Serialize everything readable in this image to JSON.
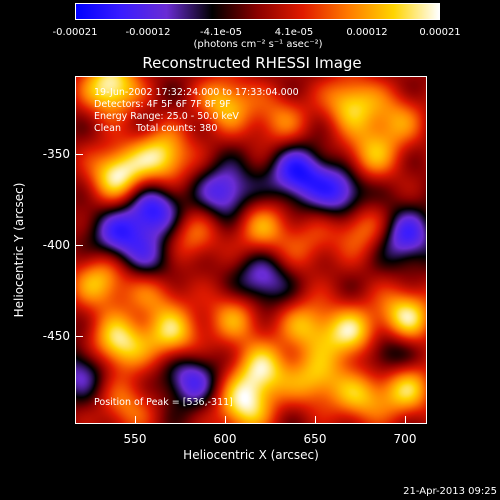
{
  "colorbar": {
    "ticks": [
      "-0.00021",
      "-0.00012",
      "-4.1e-05",
      "4.1e-05",
      "0.00012",
      "0.00021"
    ],
    "unit_label": "(photons cm⁻² s⁻¹ asec⁻²)",
    "colors": [
      "#0000ff",
      "#3a1cff",
      "#6a2cd4",
      "#000000",
      "#8a0000",
      "#e01a00",
      "#ff7a00",
      "#ffd400",
      "#ffffff"
    ]
  },
  "annotations": {
    "line1": "19-Jun-2002 17:32:24.000 to 17:33:04.000",
    "line2": "Detectors: 4F 5F 6F 7F 8F 9F",
    "line3": "Energy Range: 25.0 - 50.0 keV",
    "line4": "Clean     Total counts: 380",
    "peak": "Position of Peak = [536,-311]"
  },
  "timestamp": "21-Apr-2013 09:25",
  "chart_data": {
    "type": "heatmap",
    "title": "Reconstructed RHESSI Image",
    "xlabel": "Heliocentric X (arcsec)",
    "ylabel": "Heliocentric Y (arcsec)",
    "xlim": [
      516,
      712
    ],
    "ylim": [
      -500,
      -305
    ],
    "x_ticks": [
      "550",
      "600",
      "650",
      "700"
    ],
    "y_ticks": [
      "-350",
      "-400",
      "-450"
    ],
    "value_range": [
      -0.00021,
      0.00021
    ],
    "sources": [
      {
        "x": 536,
        "y": -311,
        "v": 0.00021
      },
      {
        "x": 540,
        "y": -360,
        "v": 0.0002
      },
      {
        "x": 565,
        "y": -350,
        "v": 0.00018
      },
      {
        "x": 600,
        "y": -320,
        "v": 0.00015
      },
      {
        "x": 630,
        "y": -330,
        "v": 0.0001
      },
      {
        "x": 670,
        "y": -320,
        "v": 0.00016
      },
      {
        "x": 695,
        "y": -330,
        "v": 0.00011
      },
      {
        "x": 680,
        "y": -350,
        "v": 0.00013
      },
      {
        "x": 580,
        "y": -395,
        "v": 0.0001
      },
      {
        "x": 620,
        "y": -390,
        "v": 0.00012
      },
      {
        "x": 645,
        "y": -400,
        "v": 7e-05
      },
      {
        "x": 675,
        "y": -390,
        "v": 0.00012
      },
      {
        "x": 530,
        "y": -420,
        "v": 0.00015
      },
      {
        "x": 560,
        "y": -425,
        "v": 0.00011
      },
      {
        "x": 540,
        "y": -455,
        "v": 0.00019
      },
      {
        "x": 570,
        "y": -450,
        "v": 0.00016
      },
      {
        "x": 605,
        "y": -440,
        "v": 0.00012
      },
      {
        "x": 645,
        "y": -445,
        "v": 0.00013
      },
      {
        "x": 670,
        "y": -450,
        "v": 0.00018
      },
      {
        "x": 700,
        "y": -440,
        "v": 0.00019
      },
      {
        "x": 620,
        "y": -470,
        "v": 0.00017
      },
      {
        "x": 650,
        "y": -475,
        "v": 0.00014
      },
      {
        "x": 610,
        "y": -490,
        "v": 0.00018
      },
      {
        "x": 545,
        "y": -490,
        "v": 0.0001
      },
      {
        "x": 675,
        "y": -485,
        "v": 0.00013
      },
      {
        "x": 700,
        "y": -480,
        "v": 0.00016
      },
      {
        "x": 640,
        "y": -360,
        "v": -0.00018
      },
      {
        "x": 600,
        "y": -370,
        "v": -0.00015
      },
      {
        "x": 560,
        "y": -380,
        "v": -0.00017
      },
      {
        "x": 665,
        "y": -370,
        "v": -0.00016
      },
      {
        "x": 540,
        "y": -395,
        "v": -0.00014
      },
      {
        "x": 700,
        "y": -395,
        "v": -0.00015
      },
      {
        "x": 620,
        "y": -420,
        "v": -0.00013
      },
      {
        "x": 560,
        "y": -410,
        "v": -0.00011
      },
      {
        "x": 580,
        "y": -475,
        "v": -0.00014
      },
      {
        "x": 690,
        "y": -460,
        "v": -0.00012
      },
      {
        "x": 520,
        "y": -470,
        "v": -0.00011
      }
    ]
  }
}
